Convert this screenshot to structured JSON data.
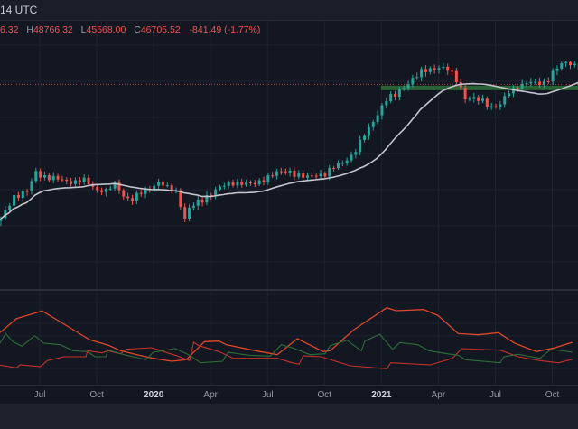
{
  "header": {
    "timezone": "14 UTC",
    "open_tail": "6.32",
    "high_label": "H",
    "high": "48766.32",
    "low_label": "L",
    "low": "45568.00",
    "close_label": "C",
    "close": "46705.52",
    "change": "-841.49 (-1.77%)"
  },
  "colors": {
    "up": "#26a69a",
    "down": "#ef5350",
    "ma": "#c4c4cc",
    "adx": "#e0482a",
    "di_plus": "#2f6e3a",
    "di_minus": "#c4322a",
    "zone": "#2e6b35",
    "price_line": "#ef5350"
  },
  "chart_data": {
    "type": "candlestick",
    "title": "",
    "x_ticks": [
      {
        "label": "Jul",
        "week": 13,
        "major": false
      },
      {
        "label": "Oct",
        "week": 26,
        "major": false
      },
      {
        "label": "2020",
        "week": 39,
        "major": true
      },
      {
        "label": "Apr",
        "week": 52,
        "major": false
      },
      {
        "label": "Jul",
        "week": 65,
        "major": false
      },
      {
        "label": "Oct",
        "week": 78,
        "major": false
      },
      {
        "label": "2021",
        "week": 91,
        "major": true
      },
      {
        "label": "Apr",
        "week": 104,
        "major": false
      },
      {
        "label": "Jul",
        "week": 117,
        "major": false
      },
      {
        "label": "Oct",
        "week": 130,
        "major": false
      }
    ],
    "close_keypoints": [
      [
        0,
        5200
      ],
      [
        3,
        7500
      ],
      [
        6,
        8000
      ],
      [
        8,
        11500
      ],
      [
        9,
        11000
      ],
      [
        11,
        10500
      ],
      [
        13,
        10200
      ],
      [
        16,
        9800
      ],
      [
        19,
        10000
      ],
      [
        22,
        8300
      ],
      [
        24,
        8200
      ],
      [
        26,
        9200
      ],
      [
        28,
        7500
      ],
      [
        30,
        7200
      ],
      [
        34,
        8500
      ],
      [
        36,
        9800
      ],
      [
        38,
        8700
      ],
      [
        40,
        8000
      ],
      [
        42,
        5300
      ],
      [
        43,
        6300
      ],
      [
        46,
        7000
      ],
      [
        50,
        8800
      ],
      [
        54,
        9700
      ],
      [
        58,
        9300
      ],
      [
        62,
        11200
      ],
      [
        66,
        11500
      ],
      [
        70,
        10500
      ],
      [
        74,
        11300
      ],
      [
        78,
        13500
      ],
      [
        80,
        15500
      ],
      [
        82,
        18500
      ],
      [
        84,
        23000
      ],
      [
        86,
        29000
      ],
      [
        88,
        36000
      ],
      [
        90,
        38000
      ],
      [
        93,
        48000
      ],
      [
        96,
        55000
      ],
      [
        98,
        58000
      ],
      [
        100,
        60000
      ],
      [
        102,
        57000
      ],
      [
        104,
        50000
      ],
      [
        106,
        37000
      ],
      [
        108,
        36000
      ],
      [
        110,
        35000
      ],
      [
        112,
        32000
      ],
      [
        114,
        33000
      ],
      [
        116,
        40000
      ],
      [
        118,
        45000
      ],
      [
        120,
        48000
      ],
      [
        122,
        47000
      ],
      [
        124,
        48000
      ],
      [
        126,
        55000
      ],
      [
        128,
        62000
      ],
      [
        130,
        64000
      ],
      [
        132,
        60000
      ]
    ],
    "moving_average_period": 20,
    "current_price": 46705.52,
    "zone_price": 44000,
    "zone_start_week": 87,
    "indicator": {
      "adx": [
        [
          0,
          37
        ],
        [
          3.8,
          46.4
        ],
        [
          9.6,
          51.4
        ],
        [
          13.3,
          45
        ],
        [
          16.7,
          39
        ],
        [
          20.4,
          32.4
        ],
        [
          25,
          28.4
        ],
        [
          27.5,
          25
        ],
        [
          31.7,
          22
        ],
        [
          35,
          20
        ],
        [
          39.2,
          18
        ],
        [
          42.5,
          19
        ],
        [
          46.7,
          31
        ],
        [
          50,
          31.4
        ],
        [
          51.7,
          29
        ],
        [
          58.3,
          25
        ],
        [
          63.3,
          22.4
        ],
        [
          67.9,
          33
        ],
        [
          73.8,
          24.4
        ],
        [
          75.4,
          25
        ],
        [
          80.8,
          39
        ],
        [
          88.3,
          53.6
        ],
        [
          90.4,
          51.6
        ],
        [
          96.7,
          52.4
        ],
        [
          100,
          48.4
        ],
        [
          104.6,
          36.4
        ],
        [
          109.2,
          35.6
        ],
        [
          113.8,
          37
        ],
        [
          117.5,
          30
        ],
        [
          122.5,
          24.4
        ],
        [
          126.7,
          27
        ],
        [
          130.7,
          30.6
        ]
      ],
      "di_minus": [
        [
          0,
          15.4
        ],
        [
          3.8,
          13.6
        ],
        [
          4.6,
          15.6
        ],
        [
          9.2,
          14.4
        ],
        [
          10.8,
          18.4
        ],
        [
          14.6,
          21
        ],
        [
          19.6,
          21
        ],
        [
          20,
          25
        ],
        [
          23.3,
          23.6
        ],
        [
          24.6,
          25
        ],
        [
          27.5,
          23
        ],
        [
          28.8,
          26
        ],
        [
          34.6,
          27
        ],
        [
          36.7,
          25
        ],
        [
          40,
          22
        ],
        [
          43.3,
          18.4
        ],
        [
          44.2,
          30.6
        ],
        [
          45.4,
          28.4
        ],
        [
          50,
          24.4
        ],
        [
          53.3,
          20
        ],
        [
          63.3,
          20
        ],
        [
          66.7,
          17
        ],
        [
          68.3,
          16
        ],
        [
          69.2,
          21.6
        ],
        [
          73.3,
          21
        ],
        [
          80,
          15
        ],
        [
          88.3,
          13
        ],
        [
          89.2,
          17
        ],
        [
          98.3,
          15.6
        ],
        [
          103.3,
          20
        ],
        [
          105.4,
          26.4
        ],
        [
          114.2,
          25.4
        ],
        [
          118.3,
          21
        ],
        [
          123.3,
          18.4
        ],
        [
          127.5,
          17
        ],
        [
          130.7,
          19.4
        ]
      ],
      "di_plus": [
        [
          0,
          30
        ],
        [
          1.3,
          36.4
        ],
        [
          2.9,
          31
        ],
        [
          5,
          28
        ],
        [
          7.9,
          35
        ],
        [
          10,
          30
        ],
        [
          13.8,
          29
        ],
        [
          16.7,
          25
        ],
        [
          20,
          24.4
        ],
        [
          21.7,
          21
        ],
        [
          24.2,
          21
        ],
        [
          24.6,
          25.6
        ],
        [
          28.3,
          22.4
        ],
        [
          33.3,
          19
        ],
        [
          35,
          24
        ],
        [
          40,
          26.4
        ],
        [
          43.3,
          22
        ],
        [
          45.8,
          17
        ],
        [
          50.8,
          18
        ],
        [
          52.1,
          24
        ],
        [
          56.7,
          22
        ],
        [
          61.7,
          21.4
        ],
        [
          64.2,
          29
        ],
        [
          66.7,
          27
        ],
        [
          70.8,
          22.4
        ],
        [
          74.2,
          23
        ],
        [
          75.4,
          28.4
        ],
        [
          79.2,
          32
        ],
        [
          82.5,
          25
        ],
        [
          83.3,
          31.4
        ],
        [
          86.7,
          36
        ],
        [
          89.6,
          26
        ],
        [
          91.3,
          30.4
        ],
        [
          95.4,
          29
        ],
        [
          97.9,
          25
        ],
        [
          102.1,
          23
        ],
        [
          104.6,
          22
        ],
        [
          106.3,
          19
        ],
        [
          114.2,
          17
        ],
        [
          115,
          21
        ],
        [
          118.3,
          22.6
        ],
        [
          123.3,
          20
        ],
        [
          125.8,
          26
        ],
        [
          130.7,
          24
        ]
      ]
    }
  }
}
